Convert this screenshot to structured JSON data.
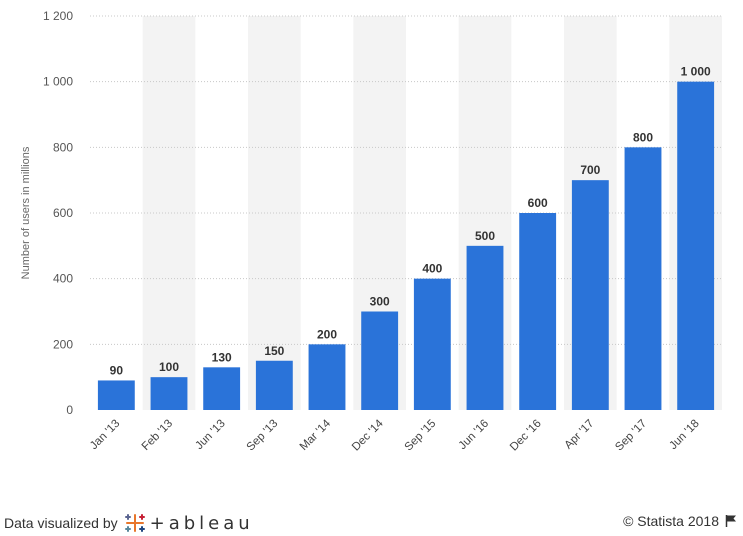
{
  "chart_data": {
    "type": "bar",
    "categories": [
      "Jan '13",
      "Feb '13",
      "Jun '13",
      "Sep '13",
      "Mar '14",
      "Dec '14",
      "Sep '15",
      "Jun '16",
      "Dec '16",
      "Apr '17",
      "Sep '17",
      "Jun '18"
    ],
    "values": [
      90,
      100,
      130,
      150,
      200,
      300,
      400,
      500,
      600,
      700,
      800,
      1000
    ],
    "value_labels": [
      "90",
      "100",
      "130",
      "150",
      "200",
      "300",
      "400",
      "500",
      "600",
      "700",
      "800",
      "1 000"
    ],
    "ylabel": "Number of users in millions",
    "ylim": [
      0,
      1200
    ],
    "yticks": [
      0,
      200,
      400,
      600,
      800,
      1000,
      1200
    ],
    "ytick_labels": [
      "0",
      "200",
      "400",
      "600",
      "800",
      "1 000",
      "1 200"
    ],
    "grid": true,
    "bar_color": "#2a73d9",
    "alt_band_color": "#f3f3f3"
  },
  "footer": {
    "visualized_by": "Data visualized by",
    "tableau": "+ableau",
    "copyright": "© Statista 2018"
  }
}
